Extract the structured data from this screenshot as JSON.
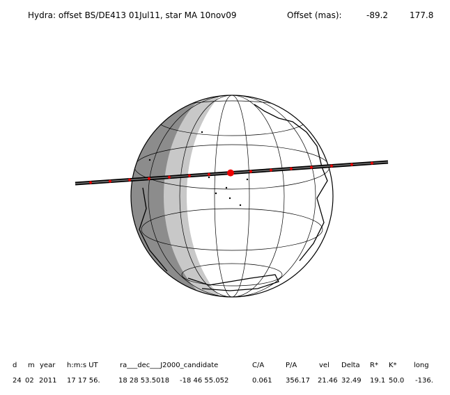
{
  "header": {
    "title": "Hydra: offset BS/DE413 01Jul11, star MA 10nov09",
    "offset_label": "Offset (mas):",
    "offset_values": [
      "-89.2",
      "177.8"
    ]
  },
  "table": {
    "headers": [
      "d",
      "m",
      "year",
      "h:m:s UT",
      "ra___dec___J2000_candidate",
      "C/A",
      "P/A",
      "vel",
      "Delta",
      "R*",
      "K*",
      "long"
    ],
    "values": [
      "24",
      "02",
      "2011",
      "17 17 56.",
      "18 28 53.5018",
      "-18 46 55.052",
      "0.061",
      "356.17",
      "21.46",
      "32.49",
      "19.1",
      "50.0",
      "-136."
    ]
  }
}
